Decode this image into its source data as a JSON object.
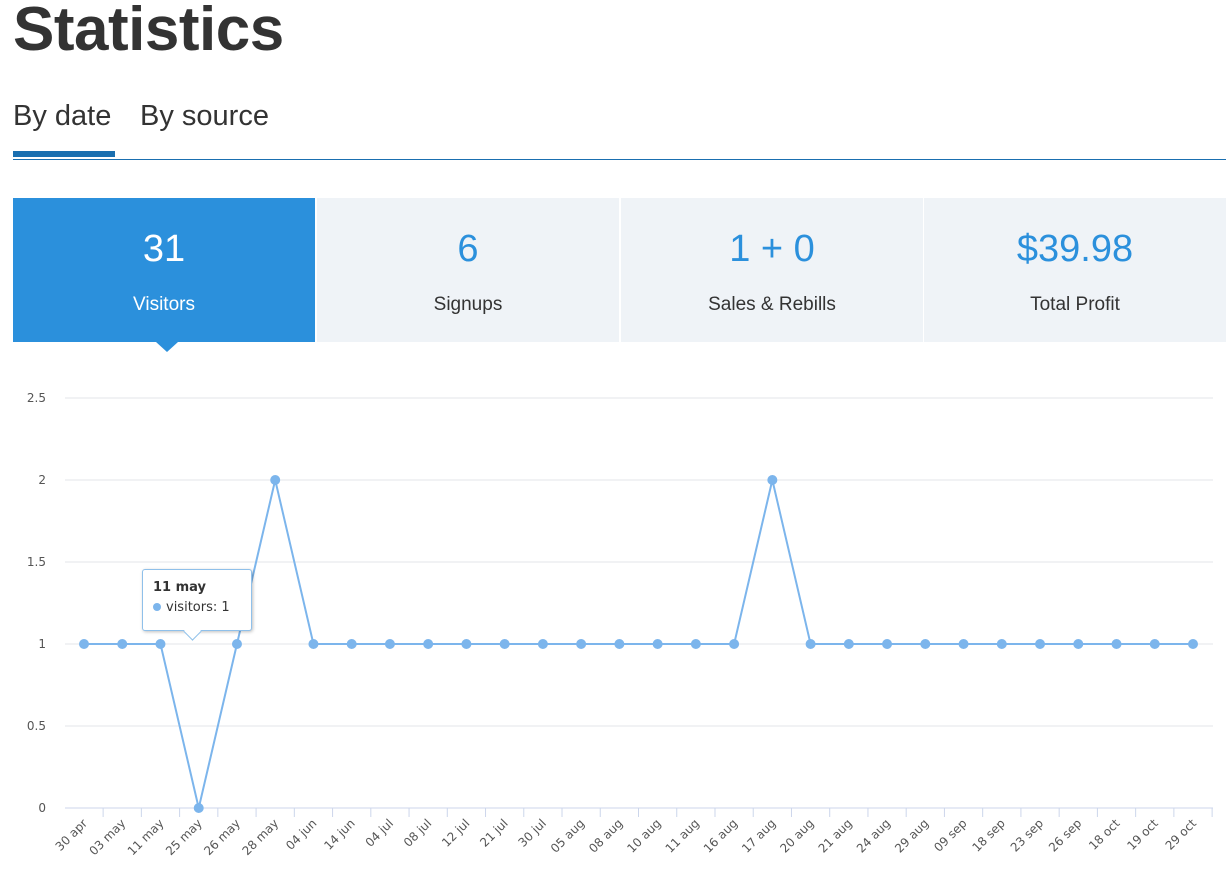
{
  "page": {
    "title": "Statistics"
  },
  "tabs": [
    {
      "label": "By date",
      "active": true
    },
    {
      "label": "By source",
      "active": false
    }
  ],
  "stats": [
    {
      "value": "31",
      "label": "Visitors",
      "active": true
    },
    {
      "value": "6",
      "label": "Signups",
      "active": false
    },
    {
      "value": "1 + 0",
      "label": "Sales & Rebills",
      "active": false
    },
    {
      "value": "$39.98",
      "label": "Total Profit",
      "active": false
    }
  ],
  "tooltip": {
    "date": "11 may",
    "series": "visitors",
    "value": "1"
  },
  "colors": {
    "accent": "#2b90dc",
    "line": "#7cb5ec",
    "tab_underline": "#1a6fb0",
    "panel_bg": "#eff3f7"
  },
  "chart_data": {
    "type": "line",
    "categories": [
      "30 apr",
      "03 may",
      "11 may",
      "25 may",
      "26 may",
      "28 may",
      "04 jun",
      "14 jun",
      "04 jul",
      "08 jul",
      "12 jul",
      "21 jul",
      "30 jul",
      "05 aug",
      "08 aug",
      "10 aug",
      "11 aug",
      "16 aug",
      "17 aug",
      "20 aug",
      "21 aug",
      "24 aug",
      "29 aug",
      "09 sep",
      "18 sep",
      "23 sep",
      "26 sep",
      "18 oct",
      "19 oct",
      "29 oct"
    ],
    "series": [
      {
        "name": "visitors",
        "values": [
          1,
          1,
          1,
          0,
          1,
          2,
          1,
          1,
          1,
          1,
          1,
          1,
          1,
          1,
          1,
          1,
          1,
          1,
          2,
          1,
          1,
          1,
          1,
          1,
          1,
          1,
          1,
          1,
          1,
          1
        ]
      }
    ],
    "yticks": [
      "0",
      "0.5",
      "1",
      "1.5",
      "2",
      "2.5"
    ],
    "ylim": [
      0,
      2.5
    ],
    "grid": true,
    "legend": "none"
  }
}
